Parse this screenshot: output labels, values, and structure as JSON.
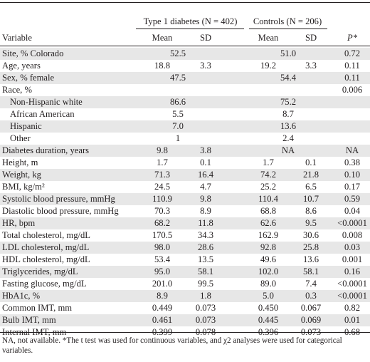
{
  "header": {
    "group1": "Type 1 diabetes (N = 402)",
    "group2": "Controls (N = 206)",
    "variable": "Variable",
    "mean1": "Mean",
    "sd1": "SD",
    "mean2": "Mean",
    "sd2": "SD",
    "p": "P*"
  },
  "rows": [
    {
      "label": "Site, % Colorado",
      "span1": "52.5",
      "span2": "51.0",
      "p": "0.72",
      "shade": true
    },
    {
      "label": "Age, years",
      "m1": "18.8",
      "sd1": "3.3",
      "m2": "19.2",
      "sd2": "3.3",
      "p": "0.11",
      "shade": false
    },
    {
      "label": "Sex, % female",
      "span1": "47.5",
      "span2": "54.4",
      "p": "0.11",
      "shade": true
    },
    {
      "label": "Race, %",
      "p": "0.006",
      "shade": false
    },
    {
      "label": "Non-Hispanic white",
      "indent": true,
      "span1": "86.6",
      "span2": "75.2",
      "shade": true
    },
    {
      "label": "African American",
      "indent": true,
      "span1": "5.5",
      "span2": "8.7",
      "shade": false
    },
    {
      "label": "Hispanic",
      "indent": true,
      "span1": "7.0",
      "span2": "13.6",
      "shade": true
    },
    {
      "label": "Other",
      "indent": true,
      "span1": "1",
      "span2": "2.4",
      "shade": false
    },
    {
      "label": "Diabetes duration, years",
      "m1": "9.8",
      "sd1": "3.8",
      "span2": "NA",
      "p": "NA",
      "shade": true
    },
    {
      "label": "Height, m",
      "m1": "1.7",
      "sd1": "0.1",
      "m2": "1.7",
      "sd2": "0.1",
      "p": "0.38",
      "shade": false
    },
    {
      "label": "Weight, kg",
      "m1": "71.3",
      "sd1": "16.4",
      "m2": "74.2",
      "sd2": "21.8",
      "p": "0.10",
      "shade": true
    },
    {
      "label": "BMI, kg/m²",
      "m1": "24.5",
      "sd1": "4.7",
      "m2": "25.2",
      "sd2": "6.5",
      "p": "0.17",
      "shade": false
    },
    {
      "label": "Systolic blood pressure, mmHg",
      "m1": "110.9",
      "sd1": "9.8",
      "m2": "110.4",
      "sd2": "10.7",
      "p": "0.59",
      "shade": true
    },
    {
      "label": "Diastolic blood pressure, mmHg",
      "m1": "70.3",
      "sd1": "8.9",
      "m2": "68.8",
      "sd2": "8.6",
      "p": "0.04",
      "shade": false
    },
    {
      "label": "HR, bpm",
      "m1": "68.2",
      "sd1": "11.8",
      "m2": "62.6",
      "sd2": "9.5",
      "p": "<0.0001",
      "shade": true
    },
    {
      "label": "Total cholesterol, mg/dL",
      "m1": "170.5",
      "sd1": "34.3",
      "m2": "162.9",
      "sd2": "30.6",
      "p": "0.008",
      "shade": false
    },
    {
      "label": "LDL cholesterol, mg/dL",
      "m1": "98.0",
      "sd1": "28.6",
      "m2": "92.8",
      "sd2": "25.8",
      "p": "0.03",
      "shade": true
    },
    {
      "label": "HDL cholesterol, mg/dL",
      "m1": "53.4",
      "sd1": "13.5",
      "m2": "49.6",
      "sd2": "13.6",
      "p": "0.001",
      "shade": false
    },
    {
      "label": "Triglycerides, mg/dL",
      "m1": "95.0",
      "sd1": "58.1",
      "m2": "102.0",
      "sd2": "58.1",
      "p": "0.16",
      "shade": true
    },
    {
      "label": "Fasting glucose, mg/dL",
      "m1": "201.0",
      "sd1": "99.5",
      "m2": "89.0",
      "sd2": "7.4",
      "p": "<0.0001",
      "shade": false
    },
    {
      "label": "HbA1c, %",
      "m1": "8.9",
      "sd1": "1.8",
      "m2": "5.0",
      "sd2": "0.3",
      "p": "<0.0001",
      "shade": true
    },
    {
      "label": "Common IMT, mm",
      "m1": "0.449",
      "sd1": "0.073",
      "m2": "0.450",
      "sd2": "0.067",
      "p": "0.82",
      "shade": false
    },
    {
      "label": "Bulb IMT, mm",
      "m1": "0.461",
      "sd1": "0.073",
      "m2": "0.445",
      "sd2": "0.069",
      "p": "0.01",
      "shade": true
    },
    {
      "label": "Internal IMT, mm",
      "m1": "0.399",
      "sd1": "0.078",
      "m2": "0.396",
      "sd2": "0.073",
      "p": "0.68",
      "shade": false
    }
  ],
  "footnote": "NA, not available. *The t test was used for continuous variables, and χ2 analyses were used for categorical variables."
}
